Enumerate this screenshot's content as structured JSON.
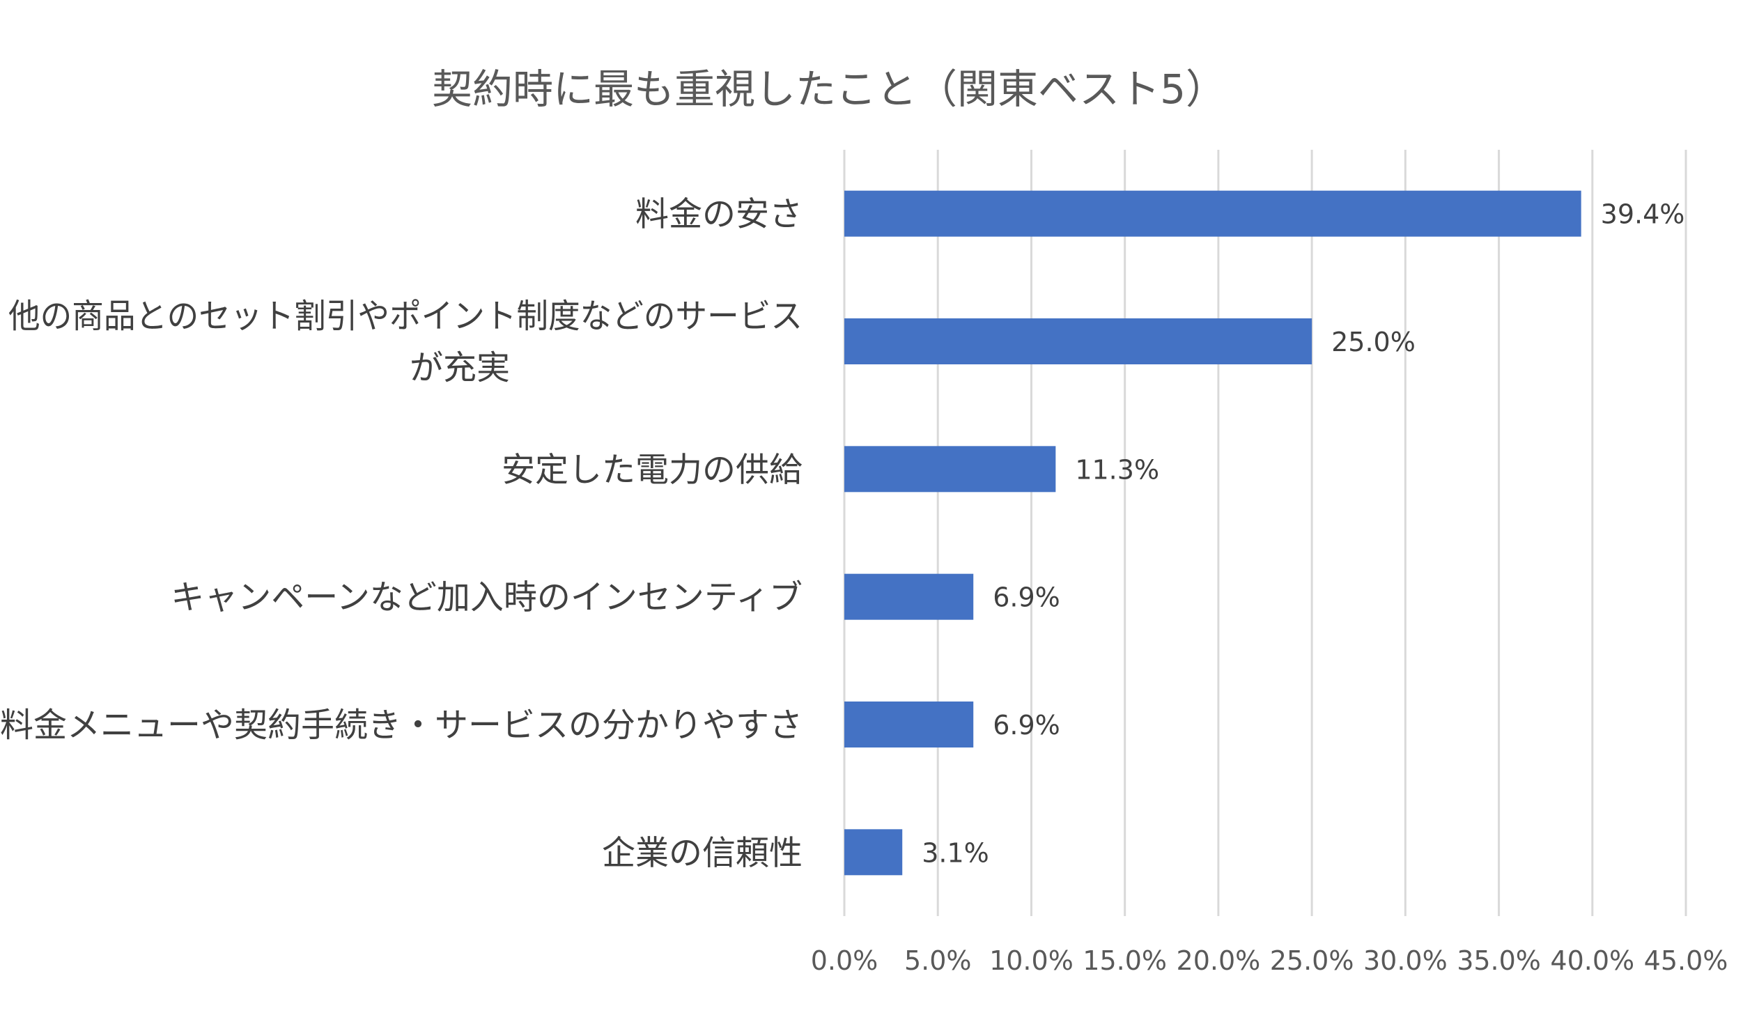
{
  "chart_data": {
    "type": "bar",
    "orientation": "horizontal",
    "title": "契約時に最も重視したこと（関東ベスト5）",
    "categories": [
      [
        "料金の安さ"
      ],
      [
        "他の商品とのセット割引やポイント制度などのサービス",
        "が充実"
      ],
      [
        "安定した電力の供給"
      ],
      [
        "キャンペーンなど加入時のインセンティブ"
      ],
      [
        "料金メニューや契約手続き・サービスの分かりやすさ"
      ],
      [
        "企業の信頼性"
      ]
    ],
    "values": [
      39.4,
      25.0,
      11.3,
      6.9,
      6.9,
      3.1
    ],
    "data_labels": [
      "39.4%",
      "25.0%",
      "11.3%",
      "6.9%",
      "6.9%",
      "3.1%"
    ],
    "xlim": [
      0,
      45
    ],
    "x_ticks": [
      0,
      5,
      10,
      15,
      20,
      25,
      30,
      35,
      40,
      45
    ],
    "x_tick_labels": [
      "0.0%",
      "5.0%",
      "10.0%",
      "15.0%",
      "20.0%",
      "25.0%",
      "30.0%",
      "35.0%",
      "40.0%",
      "45.0%"
    ],
    "xlabel": "",
    "ylabel": "",
    "grid": true,
    "legend": "none",
    "bar_color": "#4472c4"
  }
}
